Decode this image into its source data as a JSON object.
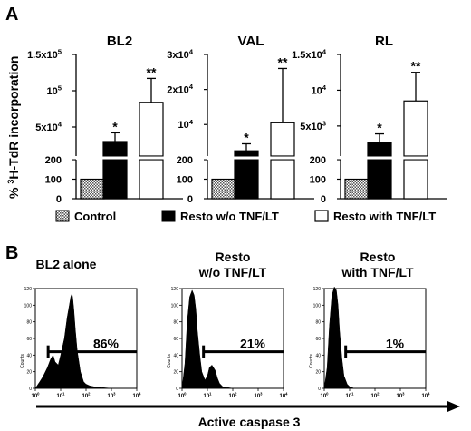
{
  "panel_a": {
    "letter": "A",
    "ylabel_sup": "3",
    "ylabel_pre": "% ",
    "ylabel_post": "H-TdR incorporation",
    "legend": [
      {
        "label": "Control",
        "fill": "hatch"
      },
      {
        "label": "Resto w/o TNF/LT",
        "fill": "#000000"
      },
      {
        "label": "Resto with TNF/LT",
        "fill": "#ffffff"
      }
    ]
  },
  "panel_b": {
    "letter": "B",
    "histogram_titles": [
      [
        "BL2 alone"
      ],
      [
        "Resto",
        "w/o TNF/LT"
      ],
      [
        "Resto",
        "with TNF/LT"
      ]
    ],
    "xaxis_label": "Active caspase 3"
  },
  "chart_data": [
    {
      "type": "bar",
      "title": "BL2",
      "categories": [
        "Control",
        "Resto w/o TNF/LT",
        "Resto with TNF/LT"
      ],
      "values": [
        100,
        30000,
        84000
      ],
      "error_plus": [
        0,
        12000,
        33000
      ],
      "significance": [
        "",
        "*",
        "**"
      ],
      "yscale": "broken",
      "yticks_lower": [
        {
          "v": 0,
          "l": "0"
        },
        {
          "v": 100,
          "l": "100"
        },
        {
          "v": 200,
          "l": "200"
        }
      ],
      "yticks_upper": [
        {
          "v": 50000,
          "b": "5x10",
          "e": "4"
        },
        {
          "v": 100000,
          "b": "10",
          "e": "5"
        },
        {
          "v": 150000,
          "b": "1.5x10",
          "e": "5"
        }
      ],
      "upper_range": [
        10000,
        150000
      ]
    },
    {
      "type": "bar",
      "title": "VAL",
      "categories": [
        "Control",
        "Resto w/o TNF/LT",
        "Resto with TNF/LT"
      ],
      "values": [
        100,
        2500,
        10500
      ],
      "error_plus": [
        0,
        2000,
        15500
      ],
      "significance": [
        "",
        "*",
        "**"
      ],
      "yscale": "broken",
      "yticks_lower": [
        {
          "v": 0,
          "l": "0"
        },
        {
          "v": 100,
          "l": "100"
        },
        {
          "v": 200,
          "l": "200"
        }
      ],
      "yticks_upper": [
        {
          "v": 10000,
          "b": "10",
          "e": "4"
        },
        {
          "v": 20000,
          "b": "2x10",
          "e": "4"
        },
        {
          "v": 30000,
          "b": "3x10",
          "e": "4"
        }
      ],
      "upper_range": [
        1000,
        30000
      ]
    },
    {
      "type": "bar",
      "title": "RL",
      "categories": [
        "Control",
        "Resto w/o TNF/LT",
        "Resto with TNF/LT"
      ],
      "values": [
        100,
        2700,
        8500
      ],
      "error_plus": [
        0,
        1200,
        4000
      ],
      "significance": [
        "",
        "*",
        "**"
      ],
      "yscale": "broken",
      "yticks_lower": [
        {
          "v": 0,
          "l": "0"
        },
        {
          "v": 100,
          "l": "100"
        },
        {
          "v": 200,
          "l": "200"
        }
      ],
      "yticks_upper": [
        {
          "v": 5000,
          "b": "5x10",
          "e": "3"
        },
        {
          "v": 10000,
          "b": "10",
          "e": "4"
        },
        {
          "v": 15000,
          "b": "1.5x10",
          "e": "4"
        }
      ],
      "upper_range": [
        800,
        15000
      ]
    },
    {
      "type": "area",
      "title": "BL2 alone",
      "xscale": "log",
      "xlim": [
        1,
        10000
      ],
      "ylim": [
        0,
        120
      ],
      "yticks": [
        0,
        20,
        40,
        60,
        80,
        100,
        120
      ],
      "xtick_labels": [
        {
          "b": "10",
          "e": "0"
        },
        {
          "b": "10",
          "e": "1"
        },
        {
          "b": "10",
          "e": "2"
        },
        {
          "b": "10",
          "e": "3"
        },
        {
          "b": "10",
          "e": "4"
        }
      ],
      "ylabel": "Counts",
      "gate_label": "86%",
      "gate_range": [
        3.2,
        10000
      ],
      "x": [
        1,
        1.5,
        2,
        3,
        4,
        5,
        6,
        8,
        10,
        14,
        18,
        22,
        25,
        28,
        30,
        33,
        38,
        45,
        60,
        80,
        100,
        140,
        200,
        400,
        1000,
        10000
      ],
      "y": [
        0,
        8,
        14,
        25,
        35,
        40,
        32,
        28,
        40,
        60,
        85,
        100,
        110,
        114,
        108,
        95,
        70,
        45,
        20,
        8,
        5,
        3,
        2,
        1,
        0,
        0
      ]
    },
    {
      "type": "area",
      "title": "Resto w/o TNF/LT",
      "xscale": "log",
      "xlim": [
        1,
        10000
      ],
      "ylim": [
        0,
        120
      ],
      "yticks": [
        0,
        20,
        40,
        60,
        80,
        100,
        120
      ],
      "xtick_labels": [
        {
          "b": "10",
          "e": "0"
        },
        {
          "b": "10",
          "e": "1"
        },
        {
          "b": "10",
          "e": "2"
        },
        {
          "b": "10",
          "e": "3"
        },
        {
          "b": "10",
          "e": "4"
        }
      ],
      "ylabel": "Counts",
      "gate_label": "21%",
      "gate_range": [
        7,
        10000
      ],
      "x": [
        1,
        1.3,
        1.6,
        2,
        2.5,
        3,
        3.5,
        4,
        5,
        6,
        8,
        10,
        12,
        15,
        20,
        25,
        30,
        40,
        60,
        100,
        10000
      ],
      "y": [
        0,
        30,
        80,
        110,
        118,
        112,
        95,
        70,
        40,
        20,
        10,
        15,
        25,
        28,
        22,
        12,
        6,
        2,
        1,
        0,
        0
      ]
    },
    {
      "type": "area",
      "title": "Resto with TNF/LT",
      "xscale": "log",
      "xlim": [
        1,
        10000
      ],
      "ylim": [
        0,
        120
      ],
      "yticks": [
        0,
        20,
        40,
        60,
        80,
        100,
        120
      ],
      "xtick_labels": [
        {
          "b": "10",
          "e": "0"
        },
        {
          "b": "10",
          "e": "1"
        },
        {
          "b": "10",
          "e": "2"
        },
        {
          "b": "10",
          "e": "3"
        },
        {
          "b": "10",
          "e": "4"
        }
      ],
      "ylabel": "Counts",
      "gate_label": "1%",
      "gate_range": [
        7,
        10000
      ],
      "x": [
        1,
        1.3,
        1.6,
        2,
        2.5,
        3,
        3.5,
        4,
        5,
        6,
        8,
        10,
        15,
        10000
      ],
      "y": [
        0,
        25,
        75,
        112,
        122,
        118,
        100,
        70,
        35,
        15,
        5,
        2,
        0,
        0
      ]
    }
  ]
}
